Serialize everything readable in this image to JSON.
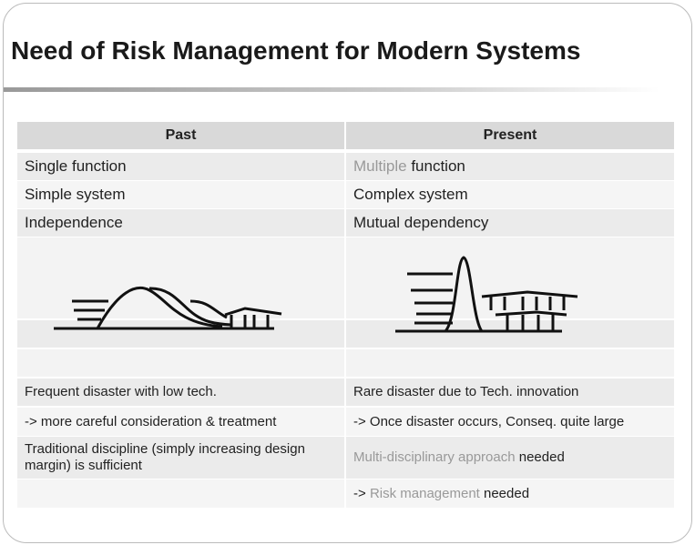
{
  "title": "Need of Risk Management for Modern Systems",
  "table": {
    "header": {
      "past": "Past",
      "present": "Present"
    },
    "rows": [
      {
        "past": "Single function",
        "present": [
          {
            "text": "Multiple",
            "color": "#999999"
          },
          " function"
        ]
      },
      {
        "past": "Simple system",
        "present": "Complex system"
      },
      {
        "past": "Independence",
        "present": "Mutual dependency"
      },
      {
        "past": "Frequent disaster with low tech.",
        "present": "Rare disaster due to Tech. innovation"
      },
      {
        "past": "-> more careful consideration & treatment",
        "present": "-> Once disaster occurs, Conseq. quite large"
      },
      {
        "past": "Traditional discipline (simply increasing design margin) is sufficient",
        "present": [
          {
            "text": "Multi-disciplinary approach",
            "color": "#999999"
          },
          " needed"
        ]
      },
      {
        "present": [
          "-> ",
          {
            "text": "Risk management",
            "color": "#999999"
          },
          " needed"
        ]
      }
    ]
  }
}
